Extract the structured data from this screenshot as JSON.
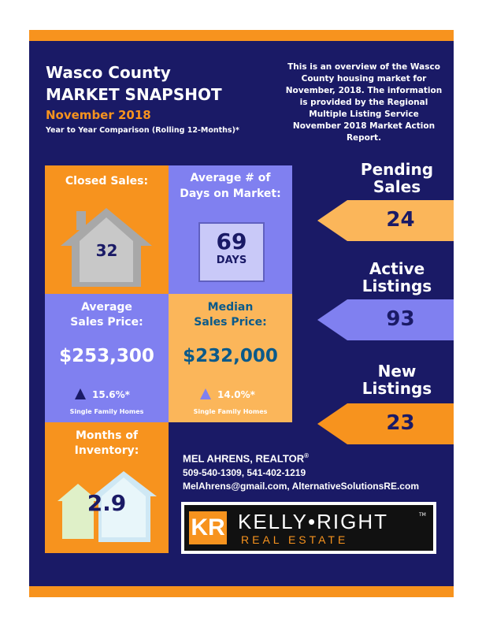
{
  "header": {
    "title_line1": "Wasco County",
    "title_line2": "MARKET SNAPSHOT",
    "date": "November 2018",
    "comparison": "Year to Year Comparison (Rolling 12-Months)*",
    "overview": "This is an overview of the Wasco County housing market for November, 2018. The information is provided by the Regional Multiple Listing Service November 2018 Market Action Report."
  },
  "tiles": {
    "closed_sales": {
      "label": "Closed Sales:",
      "value": "32"
    },
    "days_on_market": {
      "label_line1": "Average # of",
      "label_line2": "Days on Market:",
      "value": "69",
      "unit": "DAYS"
    },
    "avg_price": {
      "label_line1": "Average",
      "label_line2": "Sales Price:",
      "value": "$253,300",
      "change": "15.6%*",
      "note": "Single Family Homes"
    },
    "median_price": {
      "label_line1": "Median",
      "label_line2": "Sales Price:",
      "value": "$232,000",
      "change": "14.0%*",
      "note": "Single Family Homes"
    },
    "months_inventory": {
      "label_line1": "Months of",
      "label_line2": "Inventory:",
      "value": "2.9"
    }
  },
  "side": {
    "pending": {
      "label_line1": "Pending",
      "label_line2": "Sales",
      "value": "24"
    },
    "active": {
      "label_line1": "Active",
      "label_line2": "Listings",
      "value": "93"
    },
    "new": {
      "label_line1": "New",
      "label_line2": "Listings",
      "value": "23"
    }
  },
  "agent": {
    "name": "MEL AHRENS, REALTOR",
    "reg": "®",
    "phones": "509-540-1309, 541-402-1219",
    "contact": "MelAhrens@gmail.com, AlternativeSolutionsRE.com"
  },
  "logo": {
    "mark": "KR",
    "name": "KELLY•RIGHT",
    "tm": "TM",
    "sub": "REAL ESTATE"
  },
  "colors": {
    "navy": "#1a1a66",
    "orange": "#f7931e",
    "lavender": "#8080f0",
    "peach": "#fbb65a",
    "blue_text": "#0a5a8a"
  },
  "icons": [
    "house-icon",
    "calendar-box",
    "triangle-up-icon",
    "houses-icon",
    "arrow-banner"
  ]
}
